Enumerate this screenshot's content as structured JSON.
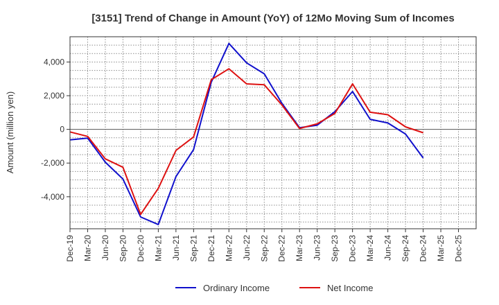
{
  "chart_data": {
    "type": "line",
    "title": "[3151]  Trend of Change in Amount (YoY) of 12Mo Moving Sum of Incomes",
    "xlabel": "",
    "ylabel": "Amount (million yen)",
    "ylim": [
      -5900,
      5500
    ],
    "yticks": [
      -4000,
      -2000,
      0,
      2000,
      4000
    ],
    "ytick_labels": [
      "-4,000",
      "-2,000",
      "0",
      "2,000",
      "4,000"
    ],
    "categories": [
      "Dec-19",
      "Mar-20",
      "Jun-20",
      "Sep-20",
      "Dec-20",
      "Mar-21",
      "Jun-21",
      "Sep-21",
      "Dec-21",
      "Mar-22",
      "Jun-22",
      "Sep-22",
      "Dec-22",
      "Mar-23",
      "Jun-23",
      "Sep-23",
      "Dec-23",
      "Mar-24",
      "Jun-24",
      "Sep-24",
      "Dec-24",
      "Mar-25",
      "Dec-25"
    ],
    "grid": true,
    "legend_position": "bottom-center",
    "series": [
      {
        "name": "Ordinary Income",
        "color": "#1010cc",
        "values": [
          -620,
          -520,
          -1950,
          -2950,
          -5200,
          -5650,
          -2800,
          -1200,
          2800,
          5100,
          3950,
          3300,
          1550,
          100,
          250,
          1050,
          2250,
          600,
          380,
          -280,
          -1700,
          null,
          null
        ]
      },
      {
        "name": "Net Income",
        "color": "#dd1111",
        "values": [
          -150,
          -420,
          -1750,
          -2250,
          -5050,
          -3500,
          -1250,
          -450,
          2950,
          3600,
          2700,
          2650,
          1450,
          50,
          330,
          950,
          2700,
          1020,
          870,
          150,
          -200,
          null,
          null
        ]
      }
    ]
  }
}
